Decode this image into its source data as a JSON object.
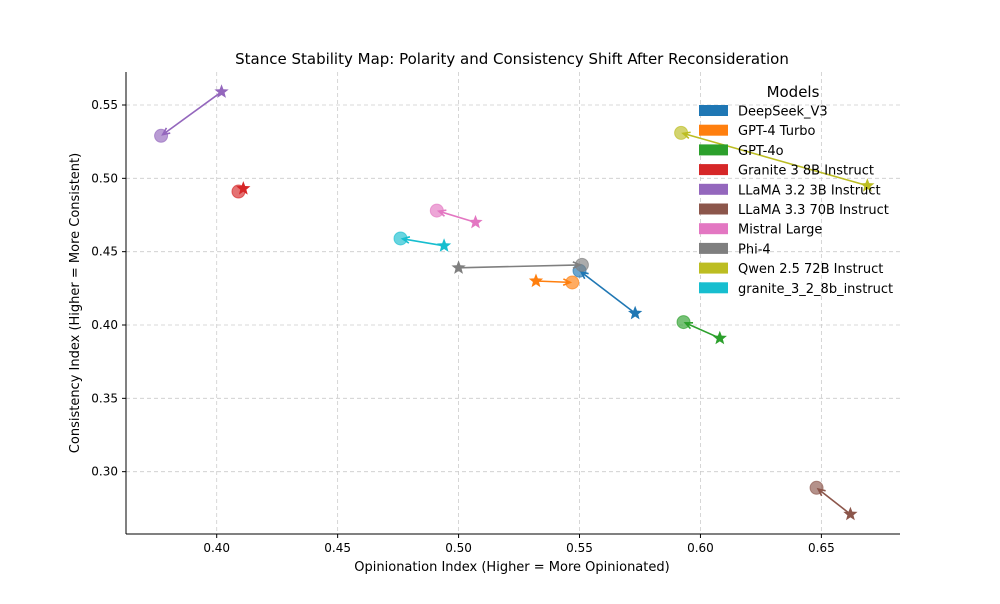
{
  "chart_data": {
    "type": "scatter",
    "title": "Stance Stability Map: Polarity and Consistency Shift After Reconsideration",
    "xlabel": "Opinionation Index (Higher = More Opinionated)",
    "ylabel": "Consistency Index (Higher = More Consistent)",
    "xlim": [
      0.3625,
      0.6825
    ],
    "ylim": [
      0.2575,
      0.5725
    ],
    "xticks": [
      0.4,
      0.45,
      0.5,
      0.55,
      0.6,
      0.65
    ],
    "yticks": [
      0.3,
      0.35,
      0.4,
      0.45,
      0.5,
      0.55
    ],
    "xtick_labels": [
      "0.40",
      "0.45",
      "0.50",
      "0.55",
      "0.60",
      "0.65"
    ],
    "ytick_labels": [
      "0.30",
      "0.35",
      "0.40",
      "0.45",
      "0.50",
      "0.55"
    ],
    "grid": true,
    "legend": {
      "title": "Models",
      "placement": "top-right"
    },
    "marker_meaning": {
      "start": "star",
      "end": "circle"
    },
    "series": [
      {
        "name": "DeepSeek_V3",
        "color": "#1f77b4",
        "start": [
          0.573,
          0.408
        ],
        "end": [
          0.55,
          0.437
        ]
      },
      {
        "name": "GPT-4 Turbo",
        "color": "#ff7f0e",
        "start": [
          0.532,
          0.43
        ],
        "end": [
          0.547,
          0.429
        ]
      },
      {
        "name": "GPT-4o",
        "color": "#2ca02c",
        "start": [
          0.608,
          0.391
        ],
        "end": [
          0.593,
          0.402
        ]
      },
      {
        "name": "Granite 3 8B Instruct",
        "color": "#d62728",
        "start": [
          0.411,
          0.493
        ],
        "end": [
          0.409,
          0.491
        ]
      },
      {
        "name": "LLaMA 3.2 3B Instruct",
        "color": "#9467bd",
        "start": [
          0.402,
          0.559
        ],
        "end": [
          0.377,
          0.529
        ]
      },
      {
        "name": "LLaMA 3.3 70B Instruct",
        "color": "#8c564b",
        "start": [
          0.662,
          0.271
        ],
        "end": [
          0.648,
          0.289
        ]
      },
      {
        "name": "Mistral Large",
        "color": "#e377c2",
        "start": [
          0.507,
          0.47
        ],
        "end": [
          0.491,
          0.478
        ]
      },
      {
        "name": "Phi-4",
        "color": "#7f7f7f",
        "start": [
          0.5,
          0.439
        ],
        "end": [
          0.551,
          0.441
        ]
      },
      {
        "name": "Qwen 2.5 72B Instruct",
        "color": "#bcbd22",
        "start": [
          0.669,
          0.495
        ],
        "end": [
          0.592,
          0.531
        ]
      },
      {
        "name": "granite_3_2_8b_instruct",
        "color": "#17becf",
        "start": [
          0.494,
          0.454
        ],
        "end": [
          0.476,
          0.459
        ]
      }
    ]
  }
}
